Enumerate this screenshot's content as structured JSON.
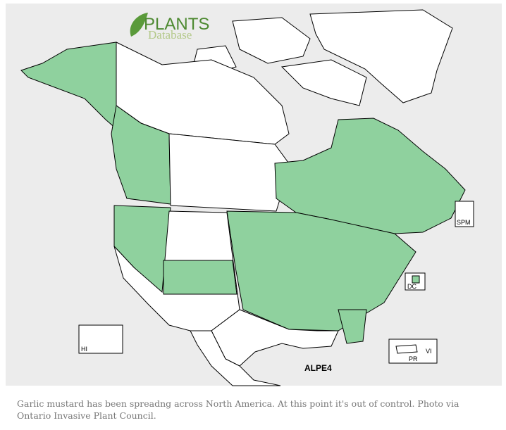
{
  "map": {
    "logo": {
      "line1": "PLANTS",
      "line2": "Database"
    },
    "labels": {
      "spm": "SPM",
      "dc": "DC",
      "hi": "HI",
      "pr": "PR",
      "vi": "VI",
      "code": "ALPE4"
    }
  },
  "caption": "Garlic mustard has been spreadng across North America. At this point it's out of control. Photo via Ontario Invasive Plant Council."
}
